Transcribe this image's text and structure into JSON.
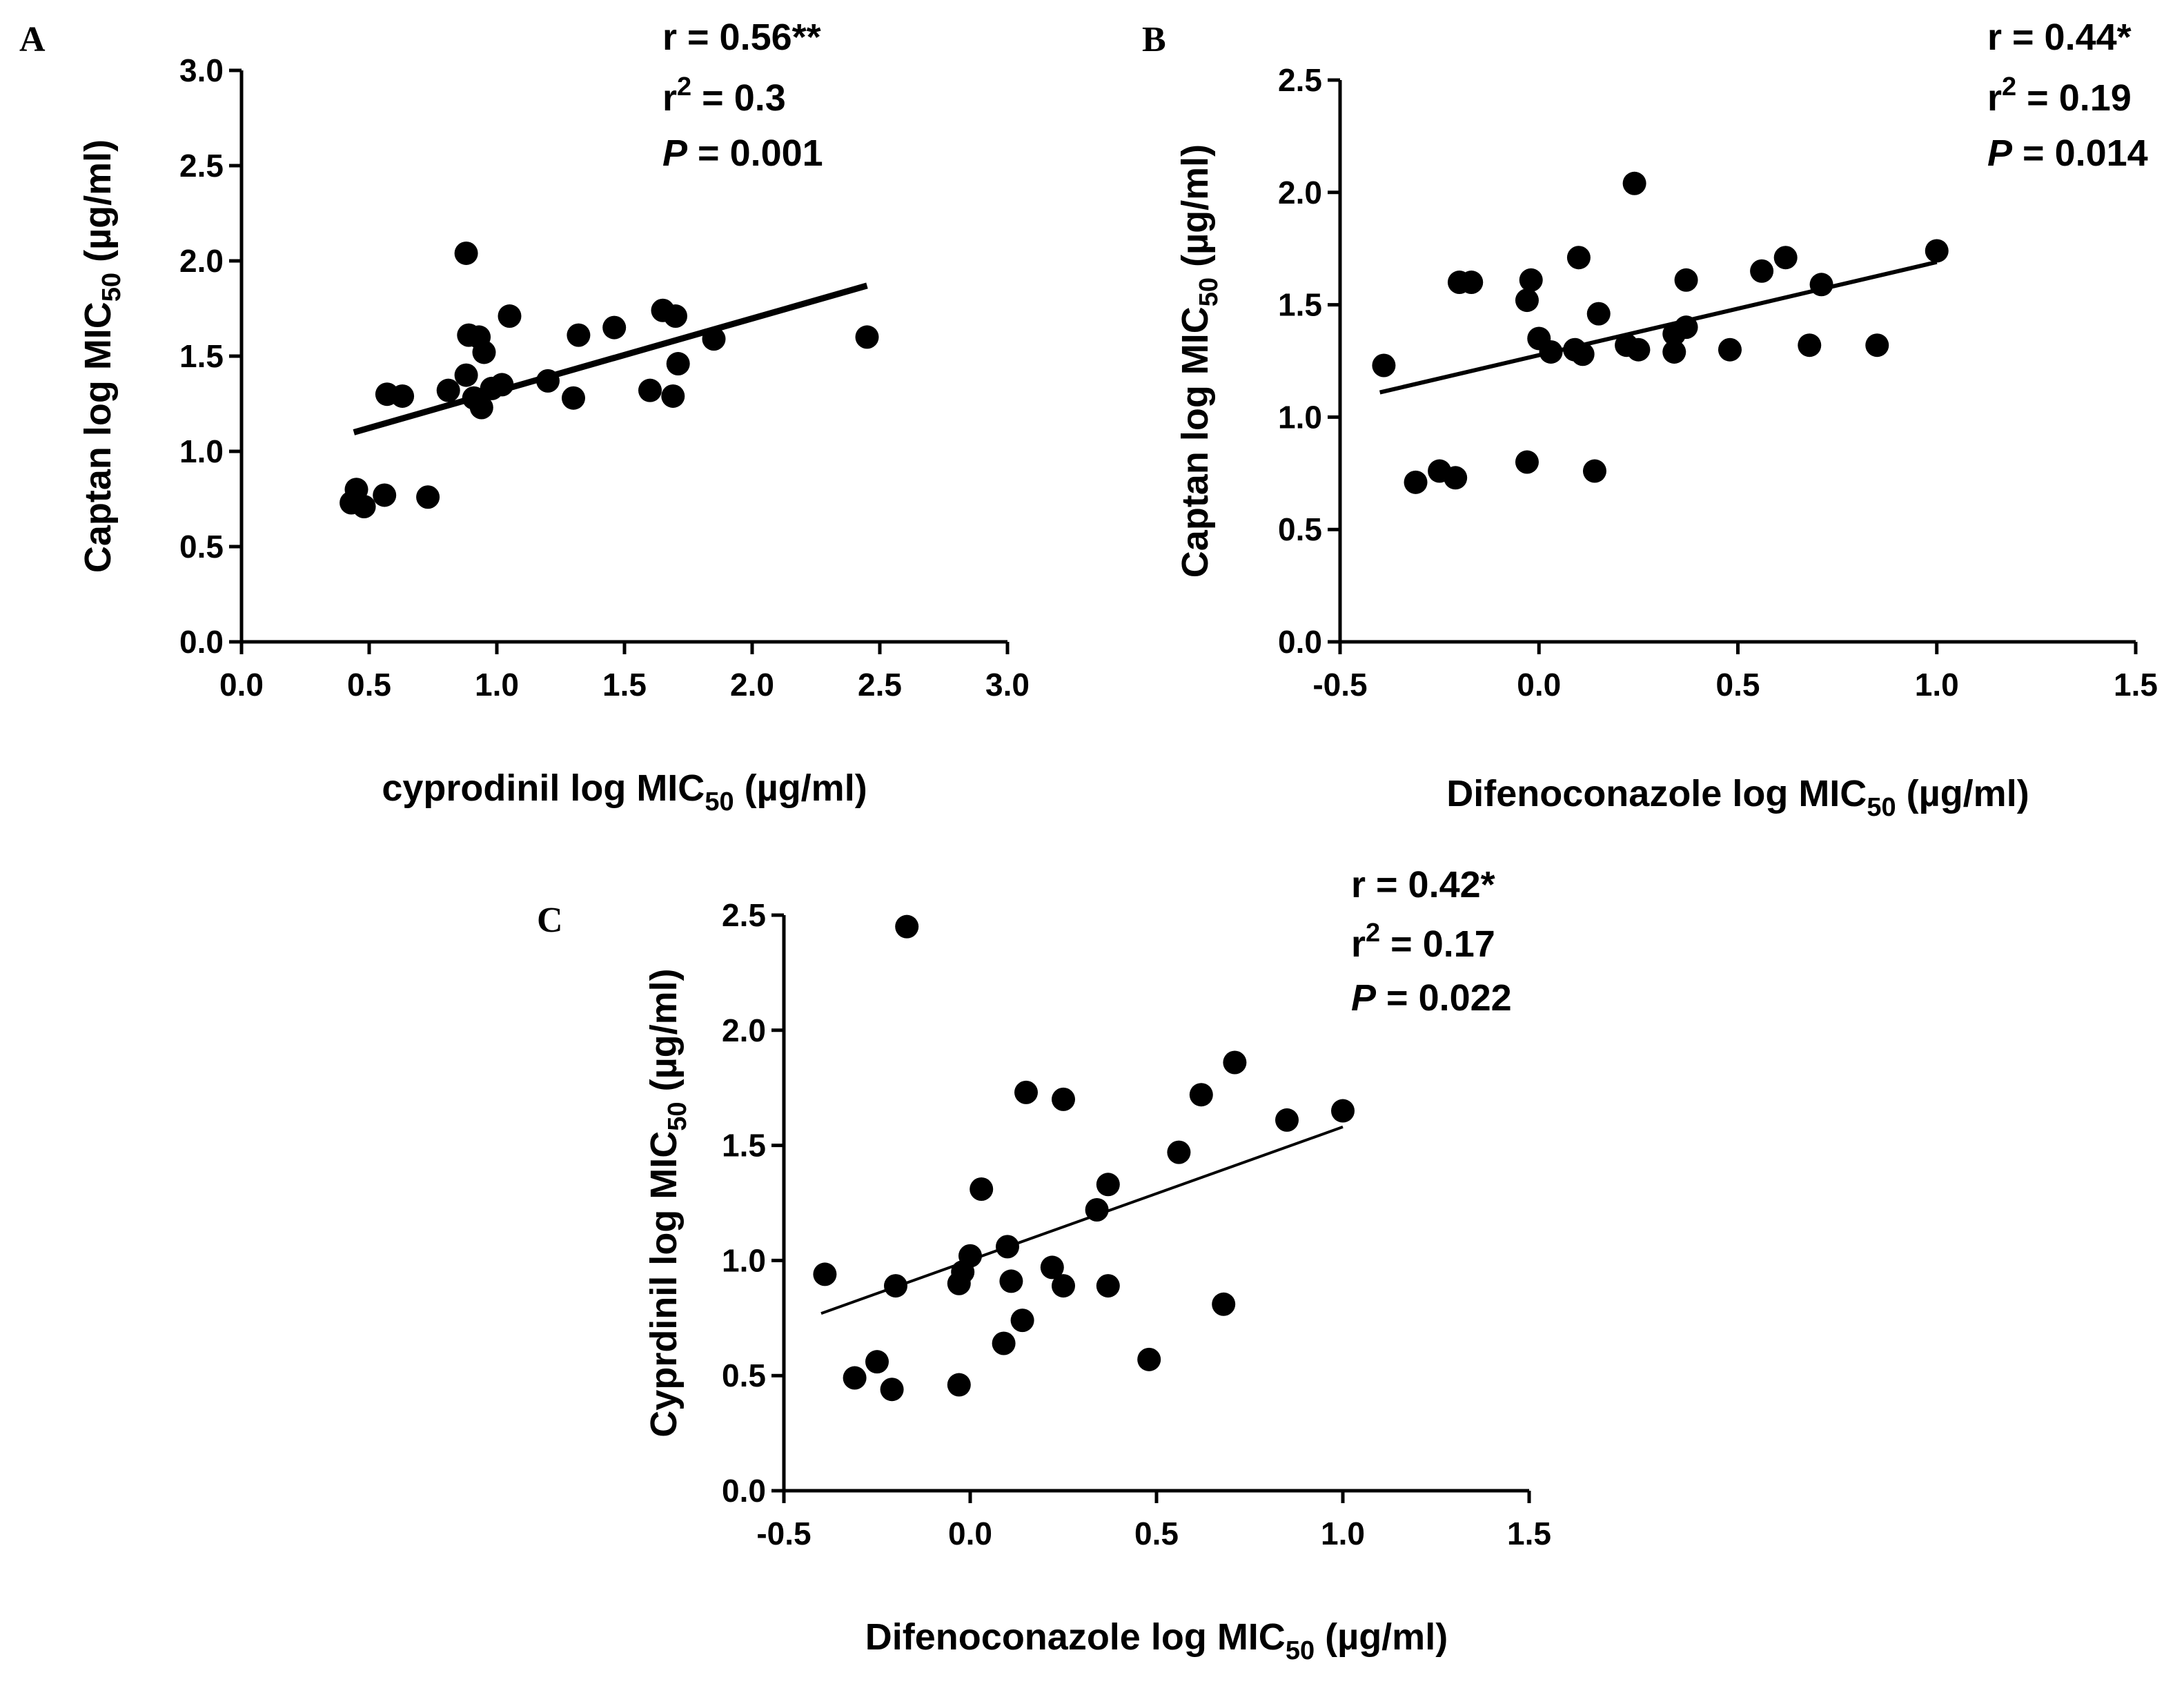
{
  "chart_data": [
    {
      "type": "scatter",
      "panel_label": "A",
      "xlabel": {
        "main": "cyprodinil log MIC",
        "sub": "50",
        "unit": " (µg/ml)"
      },
      "ylabel": {
        "main": "Captan log MIC",
        "sub": "50",
        "unit": " (µg/ml)"
      },
      "xlim": [
        0,
        3
      ],
      "ylim": [
        0,
        3
      ],
      "xticks": [
        "0.0",
        "0.5",
        "1.0",
        "1.5",
        "2.0",
        "2.5",
        "3.0"
      ],
      "yticks": [
        "0.0",
        "0.5",
        "1.0",
        "1.5",
        "2.0",
        "2.5",
        "3.0"
      ],
      "stats": {
        "r": "r = 0.56**",
        "r2_prefix": "r",
        "r2_sup": "2",
        "r2_rest": " = 0.3",
        "p_italic": "P",
        "p_rest": " = 0.001"
      },
      "fit_line": {
        "x": [
          0.44,
          2.45
        ],
        "y": [
          1.1,
          1.87
        ]
      },
      "points": {
        "x": [
          0.43,
          0.45,
          0.48,
          0.56,
          0.57,
          0.63,
          0.73,
          0.81,
          0.88,
          0.88,
          0.89,
          0.91,
          0.93,
          0.94,
          0.95,
          0.98,
          1.02,
          1.05,
          1.2,
          1.3,
          1.32,
          1.46,
          1.6,
          1.65,
          1.69,
          1.7,
          1.71,
          1.85,
          2.45
        ],
        "y": [
          0.73,
          0.8,
          0.71,
          0.77,
          1.3,
          1.29,
          0.76,
          1.32,
          2.04,
          1.4,
          1.61,
          1.28,
          1.6,
          1.23,
          1.52,
          1.33,
          1.35,
          1.71,
          1.37,
          1.28,
          1.61,
          1.65,
          1.32,
          1.74,
          1.29,
          1.71,
          1.46,
          1.59,
          1.6
        ]
      }
    },
    {
      "type": "scatter",
      "panel_label": "B",
      "xlabel": {
        "main": "Difenoconazole log MIC",
        "sub": "50",
        "unit": " (µg/ml)"
      },
      "ylabel": {
        "main": "Captan log MIC",
        "sub": "50",
        "unit": " (µg/ml)"
      },
      "xlim": [
        -0.5,
        1.5
      ],
      "ylim": [
        0,
        2.5
      ],
      "xticks": [
        "-0.5",
        "0.0",
        "0.5",
        "1.0",
        "1.5"
      ],
      "yticks": [
        "0.0",
        "0.5",
        "1.0",
        "1.5",
        "2.0",
        "2.5"
      ],
      "stats": {
        "r": "r = 0.44*",
        "r2_prefix": "r",
        "r2_sup": "2",
        "r2_rest": " = 0.19",
        "p_italic": "P",
        "p_rest": " = 0.014"
      },
      "fit_line": {
        "x": [
          -0.4,
          1.0
        ],
        "y": [
          1.11,
          1.69
        ]
      },
      "points": {
        "x": [
          -0.39,
          -0.31,
          -0.25,
          -0.21,
          -0.2,
          -0.17,
          -0.03,
          -0.03,
          -0.02,
          0.0,
          0.03,
          0.09,
          0.1,
          0.11,
          0.14,
          0.15,
          0.22,
          0.24,
          0.25,
          0.34,
          0.34,
          0.37,
          0.37,
          0.48,
          0.56,
          0.62,
          0.68,
          0.71,
          0.85,
          1.0
        ],
        "y": [
          1.23,
          0.71,
          0.76,
          0.73,
          1.6,
          1.6,
          0.8,
          1.52,
          1.61,
          1.35,
          1.29,
          1.3,
          1.71,
          1.28,
          0.76,
          1.46,
          1.32,
          2.04,
          1.3,
          1.37,
          1.29,
          1.4,
          1.61,
          1.3,
          1.65,
          1.71,
          1.32,
          1.59,
          1.32,
          1.74
        ]
      }
    },
    {
      "type": "scatter",
      "panel_label": "C",
      "xlabel": {
        "main": "Difenoconazole log MIC",
        "sub": "50",
        "unit": " (µg/ml)"
      },
      "ylabel": {
        "main": "Cyprdinil log MIC",
        "sub": "50",
        "unit": " (µg/ml)"
      },
      "xlim": [
        -0.5,
        1.5
      ],
      "ylim": [
        0,
        2.5
      ],
      "xticks": [
        "-0.5",
        "0.0",
        "0.5",
        "1.0",
        "1.5"
      ],
      "yticks": [
        "0.0",
        "0.5",
        "1.0",
        "1.5",
        "2.0",
        "2.5"
      ],
      "stats": {
        "r": "r = 0.42*",
        "r2_prefix": "r",
        "r2_sup": "2",
        "r2_rest": " = 0.17",
        "p_italic": "P",
        "p_rest": " = 0.022"
      },
      "fit_line": {
        "x": [
          -0.4,
          1.0
        ],
        "y": [
          0.77,
          1.58
        ]
      },
      "points": {
        "x": [
          -0.39,
          -0.31,
          -0.25,
          -0.21,
          -0.2,
          -0.17,
          -0.03,
          -0.03,
          -0.02,
          0.0,
          0.03,
          0.09,
          0.1,
          0.11,
          0.14,
          0.15,
          0.22,
          0.25,
          0.25,
          0.34,
          0.37,
          0.37,
          0.48,
          0.56,
          0.62,
          0.68,
          0.71,
          0.85,
          1.0
        ],
        "y": [
          0.94,
          0.49,
          0.56,
          0.44,
          0.89,
          2.45,
          0.46,
          0.9,
          0.95,
          1.02,
          1.31,
          0.64,
          1.06,
          0.91,
          0.74,
          1.73,
          0.97,
          0.89,
          1.7,
          1.22,
          1.33,
          0.89,
          0.57,
          1.47,
          1.72,
          0.81,
          1.86,
          1.61,
          1.65
        ]
      }
    }
  ]
}
